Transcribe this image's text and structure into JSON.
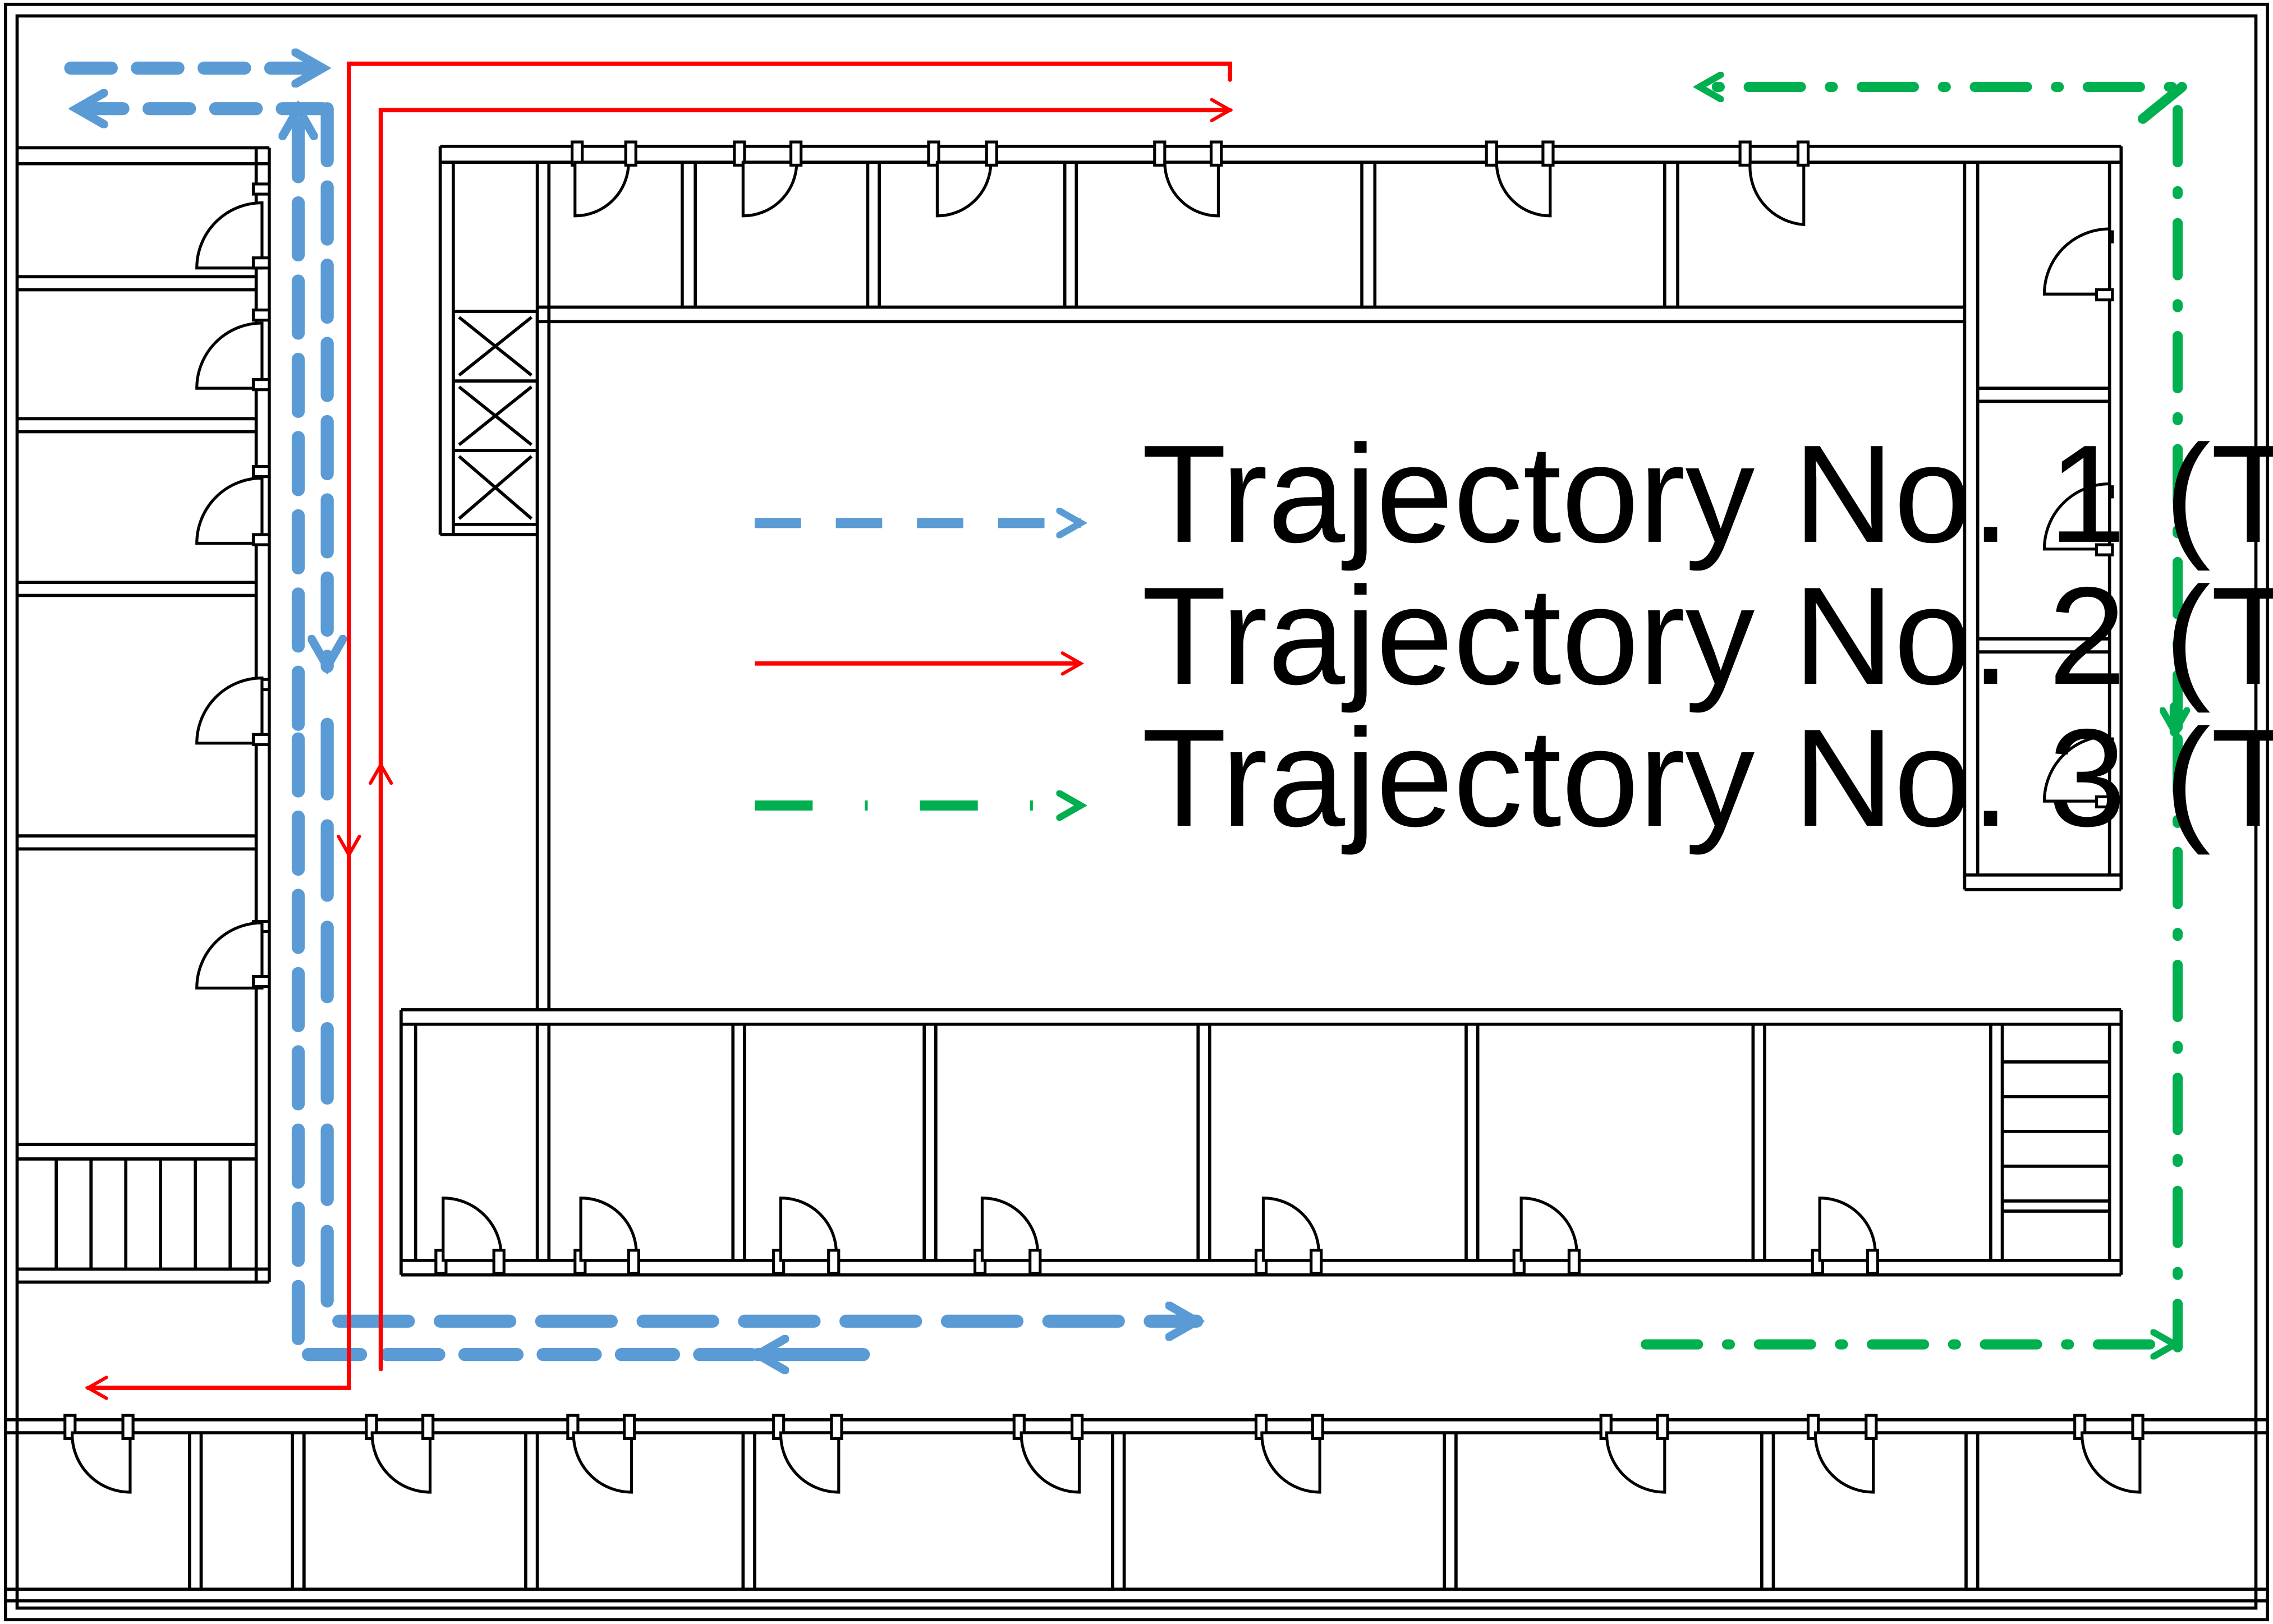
{
  "legend": [
    {
      "key": "t1",
      "text": "Trajectory No. 1 (T",
      "sub": "1",
      "close": ")",
      "color": "#5b9bd5",
      "style": "dashed"
    },
    {
      "key": "t2",
      "text": "Trajectory No. 2 (T",
      "sub": "2",
      "close": ")",
      "color": "#ff0000",
      "style": "solid"
    },
    {
      "key": "t3",
      "text": "Trajectory No. 3 (T",
      "sub": "3",
      "close": ")",
      "color": "#00b050",
      "style": "dash-dot"
    }
  ],
  "colors": {
    "walls": "#000000",
    "t1": "#5b9bd5",
    "t2": "#ff0000",
    "t3": "#00b050"
  }
}
